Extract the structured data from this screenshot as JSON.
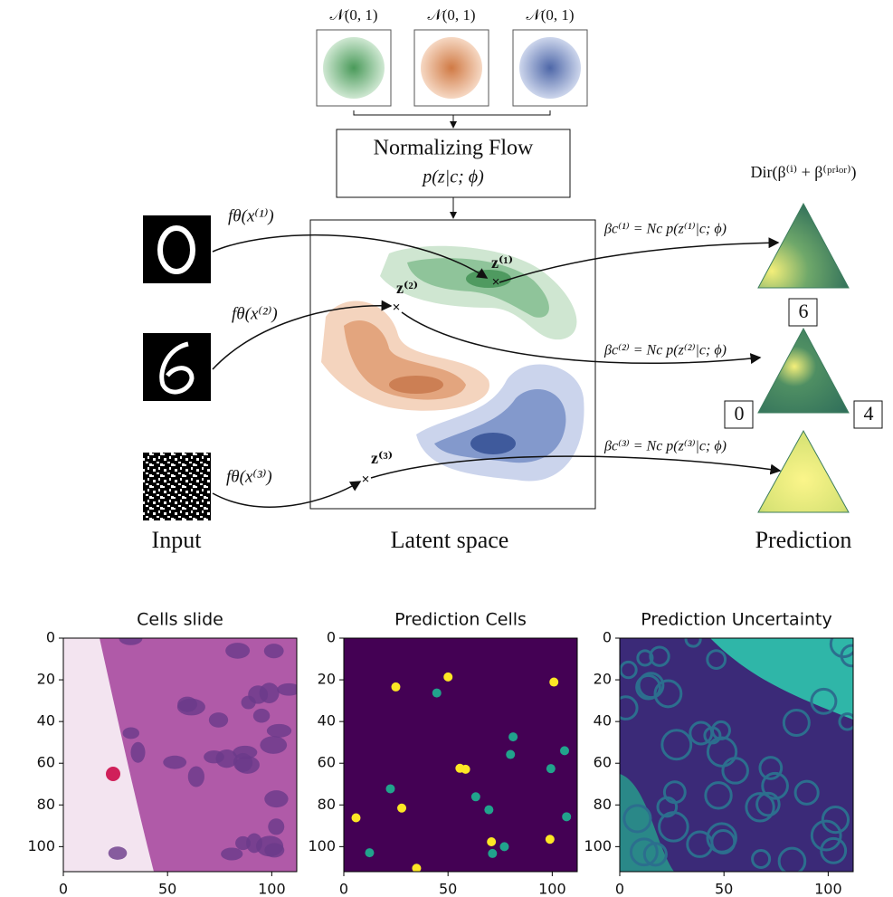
{
  "diagram": {
    "priors": [
      "𝒩(0, 1)",
      "𝒩(0, 1)",
      "𝒩(0, 1)"
    ],
    "flow": {
      "title": "Normalizing Flow",
      "subtitle": "p(z|c; ϕ)"
    },
    "encodings": [
      "fθ(x⁽¹⁾)",
      "fθ(x⁽²⁾)",
      "fθ(x⁽³⁾)"
    ],
    "latents": [
      "z⁽¹⁾",
      "z⁽²⁾",
      "z⁽³⁾"
    ],
    "betas": [
      "βc⁽¹⁾ = Nc p(z⁽¹⁾|c; ϕ)",
      "βc⁽²⁾ = Nc p(z⁽²⁾|c; ϕ)",
      "βc⁽³⁾ = Nc p(z⁽³⁾|c; ϕ)"
    ],
    "dirichlet": "Dir(β⁽ⁱ⁾ + β⁽ᵖʳⁱᵒʳ⁾)",
    "class_labels": [
      "6",
      "0",
      "4"
    ],
    "captions": [
      "Input",
      "Latent space",
      "Prediction"
    ]
  },
  "panels": [
    {
      "title": "Cells slide",
      "xlim": [
        0,
        112
      ],
      "ylim": [
        0,
        112
      ],
      "xticks": [
        0,
        50,
        100
      ],
      "yticks": [
        0,
        20,
        40,
        60,
        80,
        100
      ]
    },
    {
      "title": "Prediction Cells",
      "xlim": [
        0,
        112
      ],
      "ylim": [
        0,
        112
      ],
      "xticks": [
        0,
        50,
        100
      ],
      "yticks": [
        0,
        20,
        40,
        60,
        80,
        100
      ]
    },
    {
      "title": "Prediction Uncertainty",
      "xlim": [
        0,
        112
      ],
      "ylim": [
        0,
        112
      ],
      "xticks": [
        0,
        50,
        100
      ],
      "yticks": [
        0,
        20,
        40,
        60,
        80,
        100
      ]
    }
  ]
}
